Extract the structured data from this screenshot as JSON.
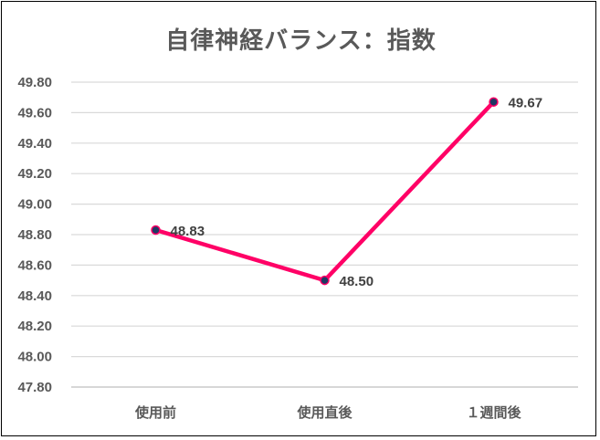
{
  "chart_data": {
    "type": "line",
    "title": "自律神経バランス：指数",
    "categories": [
      "使用前",
      "使用直後",
      "１週間後"
    ],
    "series": [
      {
        "values": [
          48.83,
          48.5,
          49.67
        ],
        "data_labels": [
          "48.83",
          "48.50",
          "49.67"
        ]
      }
    ],
    "ylim": [
      47.8,
      49.8
    ],
    "yticks": [
      "47.80",
      "48.00",
      "48.20",
      "48.40",
      "48.60",
      "48.80",
      "49.00",
      "49.20",
      "49.40",
      "49.60",
      "49.80"
    ],
    "xlabel": "",
    "ylabel": "",
    "grid": true,
    "legend": "none",
    "colors": {
      "line": "#ff0066",
      "marker": "#1f3864",
      "grid": "#d9d9d9",
      "text": "#595959"
    }
  }
}
